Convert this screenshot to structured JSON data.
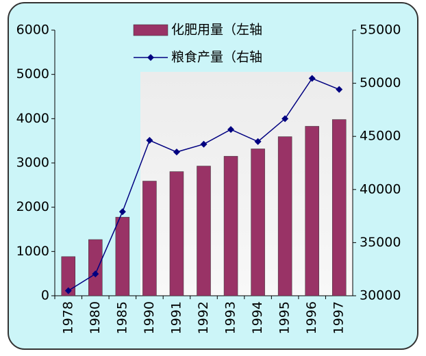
{
  "chart_data": {
    "type": "bar",
    "categories": [
      "1978",
      "1980",
      "1985",
      "1990",
      "1991",
      "1992",
      "1993",
      "1994",
      "1995",
      "1996",
      "1997"
    ],
    "series": [
      {
        "name": "化肥用量（左轴",
        "type": "bar",
        "color": "#993366",
        "values": [
          884,
          1269,
          1776,
          2590,
          2805,
          2930,
          3152,
          3318,
          3594,
          3828,
          3981
        ]
      },
      {
        "name": "粮食产量（右轴",
        "type": "line",
        "axis": "y2",
        "color": "#000080",
        "values": [
          30477,
          32056,
          37911,
          44624,
          43529,
          44266,
          45649,
          44510,
          46662,
          50454,
          49417
        ]
      }
    ],
    "ylim": [
      0,
      6000
    ],
    "yticks": [
      0,
      1000,
      2000,
      3000,
      4000,
      5000,
      6000
    ],
    "y2lim": [
      30000,
      55000
    ],
    "y2ticks": [
      30000,
      35000,
      40000,
      45000,
      50000,
      55000
    ]
  }
}
